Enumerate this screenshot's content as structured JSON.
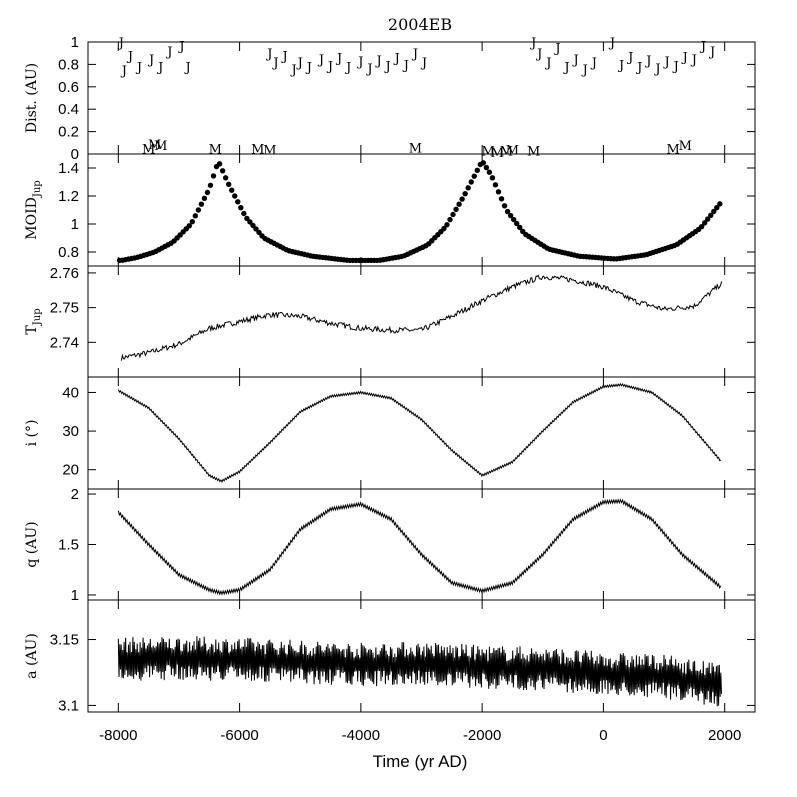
{
  "chart_data": {
    "type": "line",
    "title": "2004EB",
    "xlabel": "Time (yr AD)",
    "xlim": [
      -8500,
      2500
    ],
    "x_ticks": [
      "-8000",
      "-6000",
      "-4000",
      "-2000",
      "0",
      "2000"
    ],
    "x_tick_values": [
      -8000,
      -6000,
      -4000,
      -2000,
      0,
      2000
    ],
    "panels": [
      {
        "id": "dist",
        "ylabel": "Dist. (AU)",
        "ylim": [
          0,
          1
        ],
        "y_ticks": [
          "0",
          "0.2",
          "0.4",
          "0.6",
          "0.8",
          "1"
        ],
        "y_tick_values": [
          0,
          0.2,
          0.4,
          0.6,
          0.8,
          1
        ],
        "type": "markers",
        "series": [
          {
            "marker": "J",
            "x": [
              -7950,
              -7900,
              -7800,
              -7650,
              -7450,
              -7300,
              -7150,
              -6950,
              -6850,
              -5500,
              -5400,
              -5250,
              -5100,
              -5000,
              -4850,
              -4650,
              -4500,
              -4350,
              -4200,
              -4000,
              -3850,
              -3700,
              -3550,
              -3400,
              -3250,
              -3100,
              -2950,
              -1150,
              -1050,
              -900,
              -750,
              -600,
              -450,
              -300,
              -150,
              150,
              300,
              450,
              600,
              750,
              900,
              1050,
              1200,
              1350,
              1500,
              1650,
              1800
            ],
            "y": [
              1.0,
              0.75,
              0.88,
              0.78,
              0.85,
              0.78,
              0.92,
              0.97,
              0.78,
              0.9,
              0.82,
              0.88,
              0.76,
              0.82,
              0.78,
              0.85,
              0.79,
              0.86,
              0.78,
              0.83,
              0.77,
              0.84,
              0.79,
              0.86,
              0.8,
              0.9,
              0.82,
              1.0,
              0.9,
              0.82,
              0.95,
              0.78,
              0.85,
              0.76,
              0.82,
              1.0,
              0.8,
              0.87,
              0.78,
              0.84,
              0.77,
              0.83,
              0.79,
              0.87,
              0.85,
              0.97,
              0.92
            ]
          },
          {
            "marker": "M",
            "x": [
              -7500,
              -7400,
              -7300,
              -6400,
              -5700,
              -5500,
              -3100,
              -1900,
              -1750,
              -1600,
              -1500,
              -1150,
              1150,
              1350
            ],
            "y": [
              0.05,
              0.09,
              0.08,
              0.05,
              0.05,
              0.04,
              0.06,
              0.03,
              0.02,
              0.03,
              0.04,
              0.03,
              0.05,
              0.08
            ]
          }
        ]
      },
      {
        "id": "moid",
        "ylabel": "MOID",
        "ylabel_sub": "Jup",
        "ylim": [
          0.7,
          1.5
        ],
        "y_ticks": [
          "0.8",
          "1",
          "1.2",
          "1.4"
        ],
        "y_tick_values": [
          0.8,
          1.0,
          1.2,
          1.4
        ],
        "type": "scatter",
        "points": [
          [
            -7950,
            0.74
          ],
          [
            -7700,
            0.76
          ],
          [
            -7400,
            0.8
          ],
          [
            -7100,
            0.87
          ],
          [
            -6800,
            1.0
          ],
          [
            -6500,
            1.25
          ],
          [
            -6350,
            1.45
          ],
          [
            -6200,
            1.3
          ],
          [
            -5900,
            1.05
          ],
          [
            -5600,
            0.9
          ],
          [
            -5200,
            0.81
          ],
          [
            -4800,
            0.77
          ],
          [
            -4200,
            0.74
          ],
          [
            -3700,
            0.74
          ],
          [
            -3300,
            0.77
          ],
          [
            -2900,
            0.85
          ],
          [
            -2600,
            0.98
          ],
          [
            -2300,
            1.2
          ],
          [
            -2000,
            1.45
          ],
          [
            -1850,
            1.35
          ],
          [
            -1600,
            1.1
          ],
          [
            -1300,
            0.93
          ],
          [
            -900,
            0.82
          ],
          [
            -400,
            0.77
          ],
          [
            200,
            0.75
          ],
          [
            700,
            0.78
          ],
          [
            1200,
            0.85
          ],
          [
            1600,
            0.97
          ],
          [
            1950,
            1.16
          ]
        ]
      },
      {
        "id": "tjup",
        "ylabel": "T",
        "ylabel_sub": "Jup",
        "ylim": [
          2.73,
          2.762
        ],
        "y_ticks": [
          "2.74",
          "2.75",
          "2.76"
        ],
        "y_tick_values": [
          2.74,
          2.75,
          2.76
        ],
        "type": "line",
        "points": [
          [
            -7950,
            2.7355
          ],
          [
            -7500,
            2.737
          ],
          [
            -7000,
            2.7395
          ],
          [
            -6500,
            2.744
          ],
          [
            -6000,
            2.746
          ],
          [
            -5500,
            2.748
          ],
          [
            -5000,
            2.7475
          ],
          [
            -4500,
            2.7455
          ],
          [
            -4000,
            2.744
          ],
          [
            -3500,
            2.7435
          ],
          [
            -3000,
            2.7435
          ],
          [
            -2500,
            2.7475
          ],
          [
            -2000,
            2.752
          ],
          [
            -1500,
            2.756
          ],
          [
            -1000,
            2.759
          ],
          [
            -500,
            2.758
          ],
          [
            0,
            2.756
          ],
          [
            500,
            2.752
          ],
          [
            1000,
            2.7495
          ],
          [
            1500,
            2.7505
          ],
          [
            1950,
            2.757
          ]
        ]
      },
      {
        "id": "incl",
        "ylabel": "i (°)",
        "ylim": [
          15,
          44
        ],
        "y_ticks": [
          "20",
          "30",
          "40"
        ],
        "y_tick_values": [
          20,
          30,
          40
        ],
        "type": "line",
        "points": [
          [
            -8000,
            40.5
          ],
          [
            -7500,
            36
          ],
          [
            -7000,
            28
          ],
          [
            -6500,
            18.5
          ],
          [
            -6300,
            17
          ],
          [
            -6000,
            19.5
          ],
          [
            -5500,
            27
          ],
          [
            -5000,
            35
          ],
          [
            -4500,
            39
          ],
          [
            -4000,
            40
          ],
          [
            -3500,
            38.5
          ],
          [
            -3000,
            33
          ],
          [
            -2500,
            25
          ],
          [
            -2000,
            18.5
          ],
          [
            -1500,
            22
          ],
          [
            -1000,
            30
          ],
          [
            -500,
            37.5
          ],
          [
            0,
            41.5
          ],
          [
            300,
            42
          ],
          [
            800,
            40
          ],
          [
            1300,
            34
          ],
          [
            1950,
            22
          ]
        ]
      },
      {
        "id": "q",
        "ylabel": "q (AU)",
        "ylim": [
          0.95,
          2.05
        ],
        "y_ticks": [
          "1",
          "1.5",
          "2"
        ],
        "y_tick_values": [
          1.0,
          1.5,
          2.0
        ],
        "type": "line",
        "points": [
          [
            -8000,
            1.82
          ],
          [
            -7500,
            1.5
          ],
          [
            -7000,
            1.2
          ],
          [
            -6500,
            1.05
          ],
          [
            -6300,
            1.02
          ],
          [
            -6000,
            1.05
          ],
          [
            -5500,
            1.25
          ],
          [
            -5000,
            1.65
          ],
          [
            -4500,
            1.85
          ],
          [
            -4000,
            1.9
          ],
          [
            -3500,
            1.75
          ],
          [
            -3000,
            1.4
          ],
          [
            -2500,
            1.12
          ],
          [
            -2000,
            1.04
          ],
          [
            -1500,
            1.12
          ],
          [
            -1000,
            1.4
          ],
          [
            -500,
            1.75
          ],
          [
            0,
            1.92
          ],
          [
            300,
            1.93
          ],
          [
            800,
            1.75
          ],
          [
            1300,
            1.4
          ],
          [
            1950,
            1.07
          ]
        ]
      },
      {
        "id": "a",
        "ylabel": "a (AU)",
        "ylim": [
          3.095,
          3.18
        ],
        "y_ticks": [
          "3.1",
          "3.15"
        ],
        "y_tick_values": [
          3.1,
          3.15
        ],
        "type": "line",
        "points": [
          [
            -8000,
            3.135
          ],
          [
            -7000,
            3.136
          ],
          [
            -6000,
            3.135
          ],
          [
            -5000,
            3.133
          ],
          [
            -4000,
            3.131
          ],
          [
            -3000,
            3.132
          ],
          [
            -2000,
            3.129
          ],
          [
            -1000,
            3.128
          ],
          [
            0,
            3.124
          ],
          [
            1000,
            3.122
          ],
          [
            1950,
            3.115
          ]
        ]
      }
    ]
  }
}
